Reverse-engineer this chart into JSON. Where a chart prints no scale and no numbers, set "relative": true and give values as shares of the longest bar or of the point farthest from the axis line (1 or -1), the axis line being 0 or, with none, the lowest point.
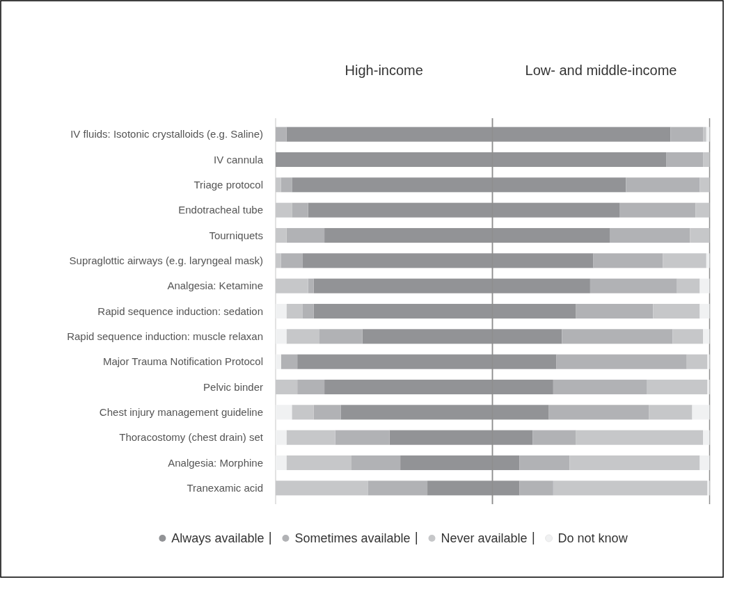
{
  "chart_data": [
    {
      "type": "bar",
      "title": "High-income",
      "orientation": "horizontal",
      "stacked": true,
      "relative": true,
      "categories": [
        "IV fluids: Isotonic crystalloids (e.g. Saline)",
        "IV cannula",
        "Triage protocol",
        "Endotracheal tube",
        "Tourniquets",
        "Supraglottic airways (e.g. laryngeal mask)",
        "Analgesia: Ketamine",
        "Rapid sequence induction: sedation",
        "Rapid sequence induction: muscle relaxan",
        "Major Trauma Notification Protocol",
        "Pelvic binder",
        "Chest injury management guideline",
        "Thoracostomy (chest drain) set",
        "Analgesia: Morphine",
        "Tranexamic acid"
      ],
      "series": [
        {
          "color": "#929396",
          "values": [
            0.95,
            1.0,
            0.925,
            0.85,
            0.775,
            0.875,
            0.825,
            0.825,
            0.6,
            0.9,
            0.775,
            0.7,
            0.475,
            0.425,
            0.3
          ]
        },
        {
          "color": "#b1b2b5",
          "values": [
            0.05,
            0,
            0.05,
            0.075,
            0.175,
            0.1,
            0.025,
            0.05,
            0.2,
            0.075,
            0.125,
            0.125,
            0.25,
            0.225,
            0.275
          ]
        },
        {
          "color": "#c6c7c9",
          "values": [
            0,
            0,
            0.025,
            0.075,
            0.05,
            0.025,
            0.15,
            0.075,
            0.15,
            0,
            0.1,
            0.1,
            0.225,
            0.3,
            0.425
          ]
        },
        {
          "color": "#f0f1f2",
          "values": [
            0,
            0,
            0,
            0,
            0,
            0,
            0,
            0.05,
            0.05,
            0.025,
            0,
            0.075,
            0.05,
            0.05,
            0
          ]
        }
      ]
    },
    {
      "type": "bar",
      "title": "Low- and middle-income",
      "orientation": "horizontal",
      "stacked": true,
      "relative": true,
      "legend": "bottom",
      "categories": [
        null,
        null,
        null,
        null,
        null,
        null,
        null,
        null,
        null,
        null,
        null,
        null,
        null,
        null,
        null
      ],
      "series": [
        {
          "name": "Always available",
          "color": "#929396",
          "values": [
            0.82,
            0.8,
            0.615,
            0.585,
            0.54,
            0.465,
            0.45,
            0.385,
            0.32,
            0.295,
            0.28,
            0.26,
            0.185,
            0.125,
            0.125
          ]
        },
        {
          "name": "Sometimes available",
          "color": "#b1b2b5",
          "values": [
            0.15,
            0.17,
            0.34,
            0.35,
            0.37,
            0.32,
            0.4,
            0.355,
            0.51,
            0.6,
            0.43,
            0.46,
            0.2,
            0.23,
            0.155
          ]
        },
        {
          "name": "Never available",
          "color": "#c6c7c9",
          "values": [
            0.015,
            0.03,
            0.045,
            0.065,
            0.09,
            0.2,
            0.105,
            0.215,
            0.14,
            0.095,
            0.28,
            0.2,
            0.585,
            0.6,
            0.71
          ]
        },
        {
          "name": "Do not know",
          "color": "#f0f1f2",
          "values": [
            0.015,
            0,
            0,
            0,
            0,
            0.015,
            0.045,
            0.045,
            0.03,
            0.01,
            0.01,
            0.08,
            0.03,
            0.045,
            0.01
          ]
        }
      ]
    }
  ]
}
